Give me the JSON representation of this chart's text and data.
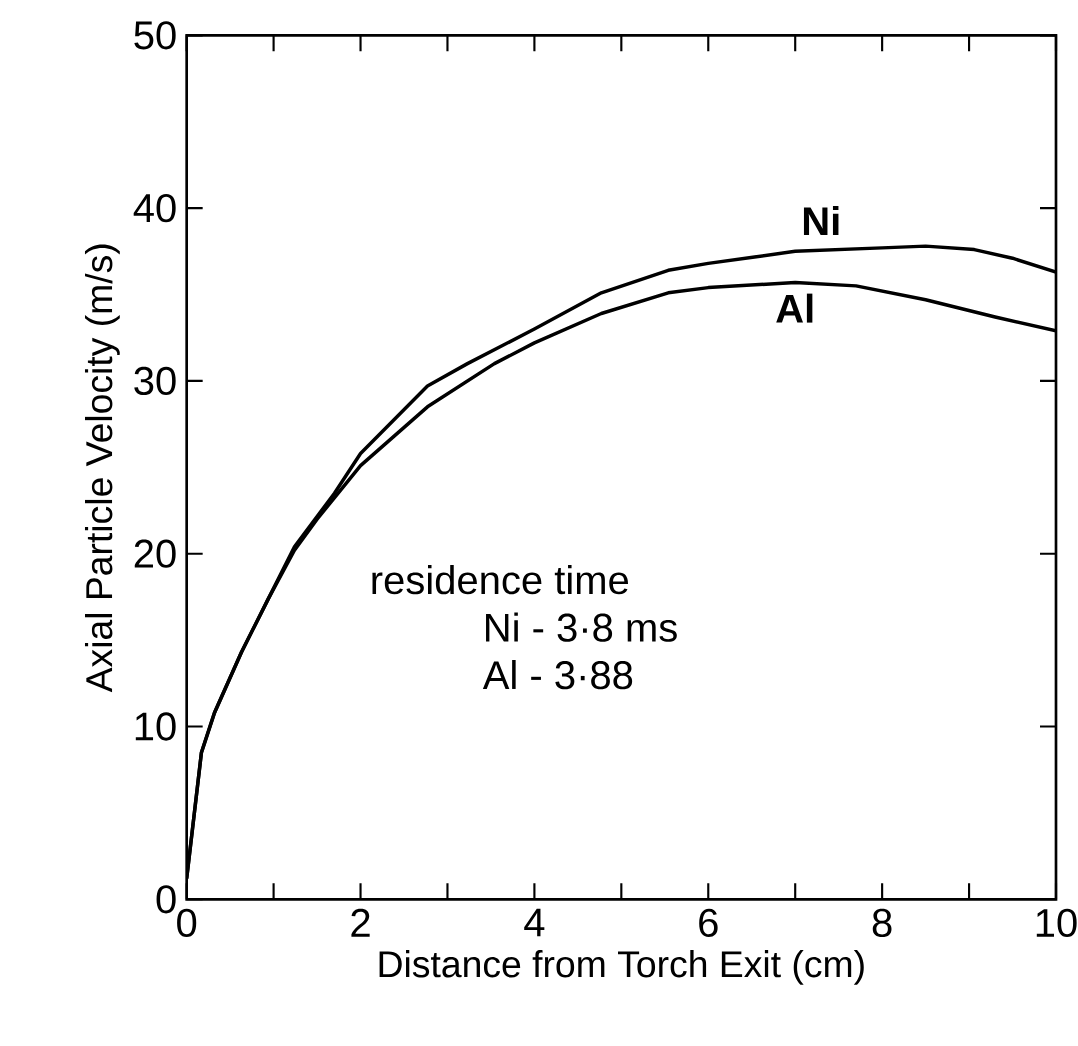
{
  "chart_data": {
    "type": "line",
    "xlabel": "Distance from Torch Exit (cm)",
    "ylabel": "Axial Particle Velocity (m/s)",
    "xlim": [
      0,
      10
    ],
    "ylim": [
      0,
      50
    ],
    "xticks": [
      0,
      {
        "value": 1,
        "label": null
      },
      2,
      {
        "value": 3,
        "label": null
      },
      4,
      {
        "value": 5,
        "label": null
      },
      6,
      {
        "value": 7,
        "label": null
      },
      8,
      {
        "value": 9,
        "label": null
      },
      10
    ],
    "yticks": [
      0,
      10,
      20,
      30,
      40,
      50
    ],
    "grid": false,
    "legend": false,
    "marker": "none",
    "line_style": "solid",
    "series": [
      {
        "name": "Ni",
        "color": "#000000",
        "x": [
          0,
          0.17,
          0.32,
          0.63,
          0.94,
          1.24,
          1.7,
          2.0,
          2.77,
          3.23,
          4.0,
          4.77,
          5.54,
          6.0,
          7.0,
          8.0,
          8.5,
          9.06,
          9.5,
          10
        ],
        "values": [
          1.2,
          8.5,
          10.8,
          14.3,
          17.4,
          20.4,
          23.5,
          25.8,
          29.7,
          31.0,
          33.0,
          35.1,
          36.4,
          36.8,
          37.5,
          37.7,
          37.8,
          37.6,
          37.1,
          36.3
        ]
      },
      {
        "name": "Al",
        "color": "#000000",
        "x": [
          0,
          0.17,
          0.32,
          0.63,
          0.94,
          1.24,
          1.5,
          2.0,
          2.77,
          3.54,
          4.0,
          4.77,
          5.54,
          6.0,
          7.0,
          7.7,
          8.5,
          9.3,
          10
        ],
        "values": [
          1.2,
          8.5,
          10.8,
          14.3,
          17.4,
          20.2,
          22.0,
          25.1,
          28.5,
          31.0,
          32.2,
          33.9,
          35.1,
          35.4,
          35.7,
          35.5,
          34.7,
          33.7,
          32.9
        ]
      }
    ],
    "annotations": [
      "residence time",
      "Ni - 3·8 ms",
      "Al - 3·88"
    ]
  }
}
